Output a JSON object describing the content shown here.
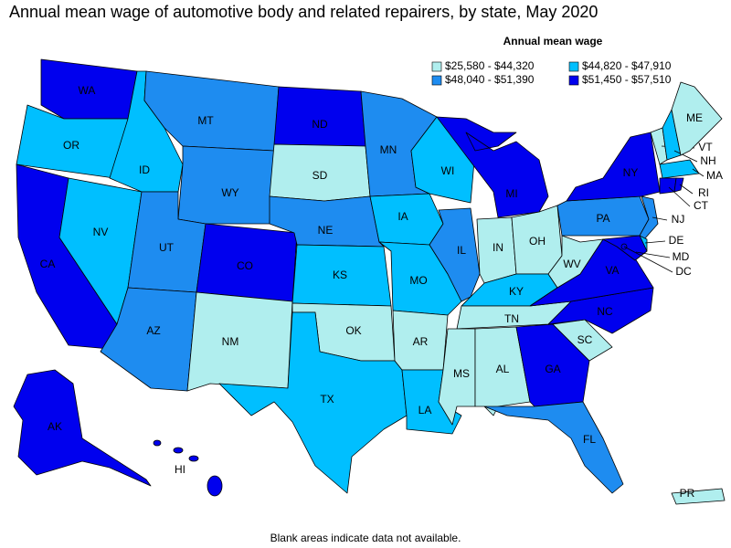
{
  "title": "Annual mean wage of automotive body and related repairers, by state, May 2020",
  "legend": {
    "title": "Annual mean wage",
    "items": [
      {
        "label": "$25,580 - $44,320",
        "color": "#b0eeee"
      },
      {
        "label": "$44,820 - $47,910",
        "color": "#00bfff"
      },
      {
        "label": "$48,040 - $51,390",
        "color": "#1e8cf0"
      },
      {
        "label": "$51,450 - $57,510",
        "color": "#0000ee"
      }
    ]
  },
  "states": [
    {
      "label": "WA",
      "color": "#0000ee"
    },
    {
      "label": "OR",
      "color": "#00bfff"
    },
    {
      "label": "CA",
      "color": "#0000ee"
    },
    {
      "label": "NV",
      "color": "#00bfff"
    },
    {
      "label": "ID",
      "color": "#00bfff"
    },
    {
      "label": "MT",
      "color": "#1e8cf0"
    },
    {
      "label": "WY",
      "color": "#1e8cf0"
    },
    {
      "label": "UT",
      "color": "#1e8cf0"
    },
    {
      "label": "CO",
      "color": "#0000ee"
    },
    {
      "label": "AZ",
      "color": "#1e8cf0"
    },
    {
      "label": "NM",
      "color": "#b0eeee"
    },
    {
      "label": "ND",
      "color": "#0000ee"
    },
    {
      "label": "SD",
      "color": "#b0eeee"
    },
    {
      "label": "NE",
      "color": "#1e8cf0"
    },
    {
      "label": "KS",
      "color": "#00bfff"
    },
    {
      "label": "OK",
      "color": "#b0eeee"
    },
    {
      "label": "TX",
      "color": "#00bfff"
    },
    {
      "label": "MN",
      "color": "#1e8cf0"
    },
    {
      "label": "IA",
      "color": "#00bfff"
    },
    {
      "label": "WI",
      "color": "#00bfff"
    },
    {
      "label": "MO",
      "color": "#00bfff"
    },
    {
      "label": "AR",
      "color": "#b0eeee"
    },
    {
      "label": "LA",
      "color": "#00bfff"
    },
    {
      "label": "IL",
      "color": "#1e8cf0"
    },
    {
      "label": "IN",
      "color": "#b0eeee"
    },
    {
      "label": "OH",
      "color": "#b0eeee"
    },
    {
      "label": "MI",
      "color": "#0000ee"
    },
    {
      "label": "KY",
      "color": "#00bfff"
    },
    {
      "label": "TN",
      "color": "#b0eeee"
    },
    {
      "label": "MS",
      "color": "#b0eeee"
    },
    {
      "label": "AL",
      "color": "#b0eeee"
    },
    {
      "label": "GA",
      "color": "#0000ee"
    },
    {
      "label": "FL",
      "color": "#1e8cf0"
    },
    {
      "label": "SC",
      "color": "#b0eeee"
    },
    {
      "label": "NC",
      "color": "#0000ee"
    },
    {
      "label": "VA",
      "color": "#0000ee"
    },
    {
      "label": "WV",
      "color": "#b0eeee"
    },
    {
      "label": "PA",
      "color": "#1e8cf0"
    },
    {
      "label": "NY",
      "color": "#0000ee"
    },
    {
      "label": "NJ",
      "color": "#1e8cf0"
    },
    {
      "label": "DE",
      "color": "#00bfff"
    },
    {
      "label": "MD",
      "color": "#0000ee"
    },
    {
      "label": "DC",
      "color": "#0000ee"
    },
    {
      "label": "VT",
      "color": "#b0eeee"
    },
    {
      "label": "NH",
      "color": "#00bfff"
    },
    {
      "label": "ME",
      "color": "#b0eeee"
    },
    {
      "label": "MA",
      "color": "#00bfff"
    },
    {
      "label": "CT",
      "color": "#0000ee"
    },
    {
      "label": "RI",
      "color": "#0000ee"
    },
    {
      "label": "AK",
      "color": "#0000ee"
    },
    {
      "label": "HI",
      "color": "#0000ee"
    },
    {
      "label": "PR",
      "color": "#b0eeee"
    }
  ],
  "footnote": "Blank areas indicate data not available."
}
